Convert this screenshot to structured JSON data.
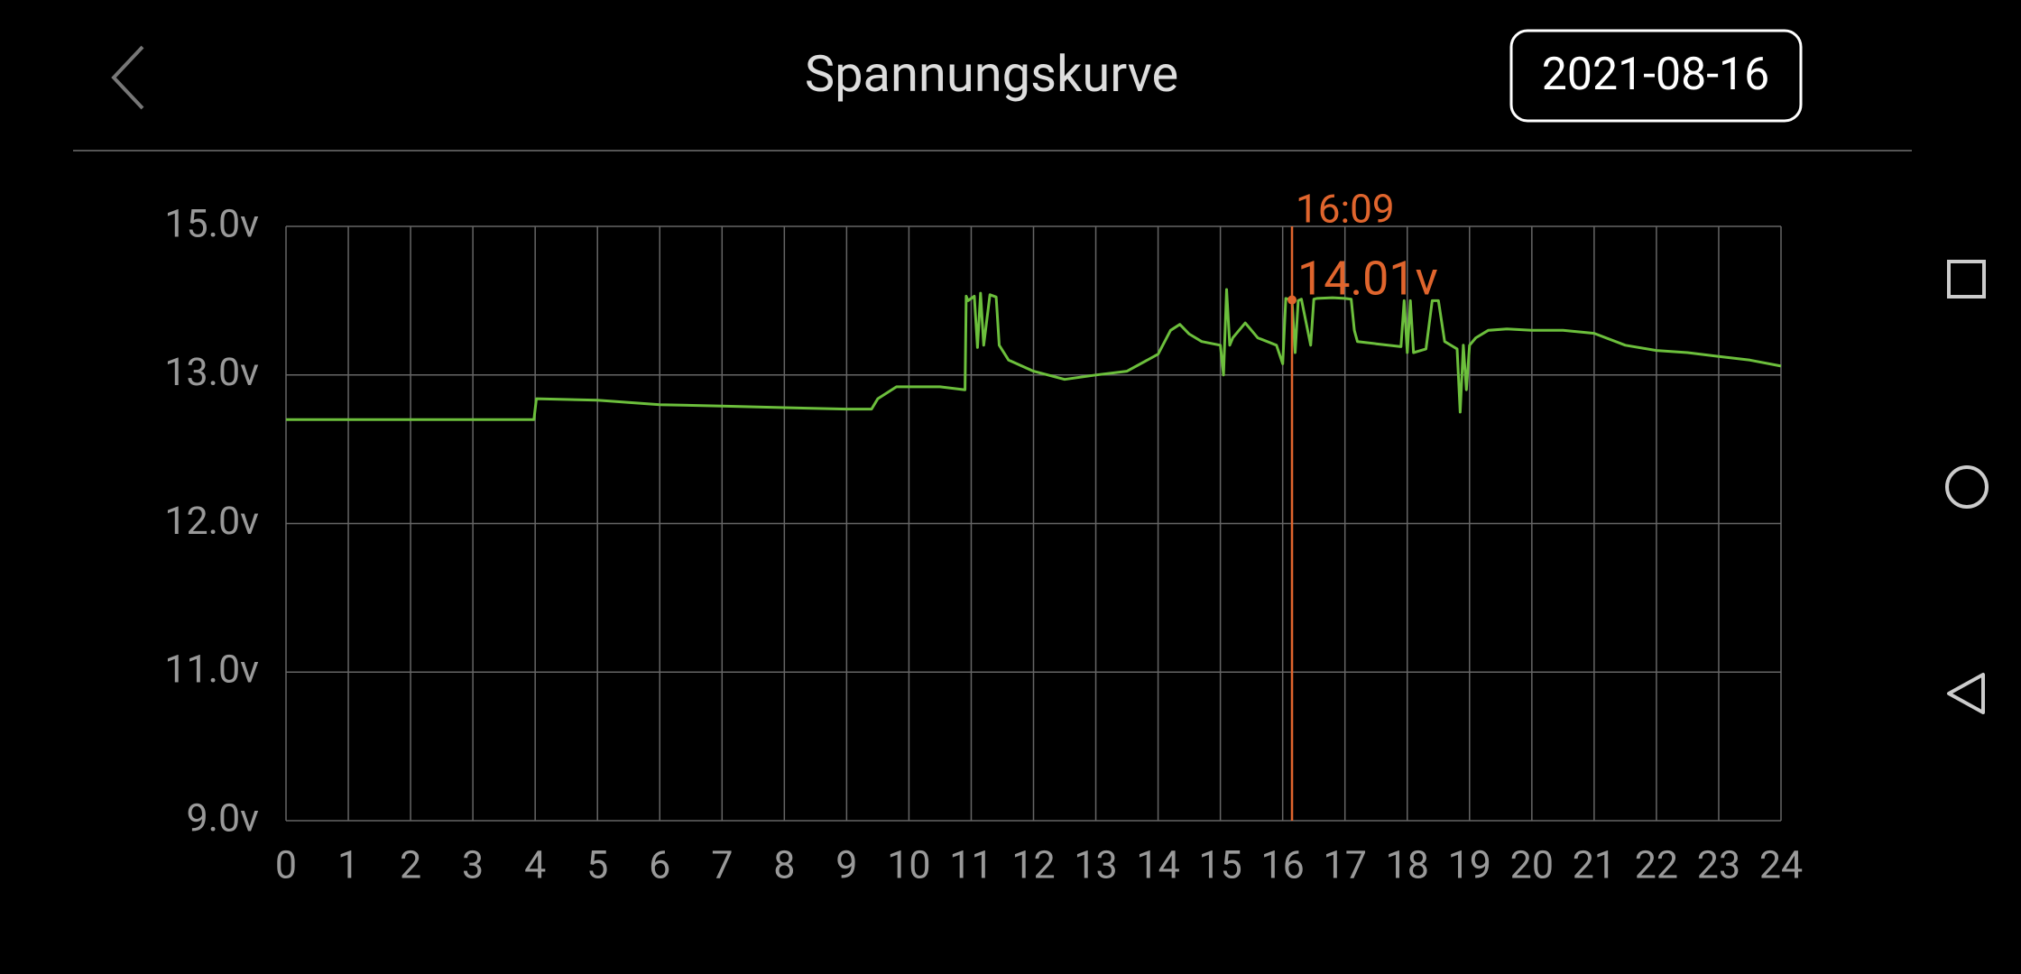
{
  "header": {
    "title": "Spannungskurve",
    "date": "2021-08-16"
  },
  "chart_data": {
    "type": "line",
    "color": "#6cbf3c",
    "grid": true,
    "x": [
      0,
      1,
      2,
      3,
      3.98,
      4.02,
      5,
      6,
      7,
      8,
      9,
      9.4,
      9.5,
      9.8,
      10.5,
      10.9,
      10.92,
      10.95,
      11.05,
      11.1,
      11.15,
      11.2,
      11.3,
      11.4,
      11.45,
      11.6,
      12,
      12.5,
      13,
      13.5,
      14,
      14.2,
      14.35,
      14.5,
      14.7,
      15,
      15.05,
      15.1,
      15.15,
      15.2,
      15.4,
      15.6,
      15.9,
      16,
      16.05,
      16.15,
      16.2,
      16.25,
      16.3,
      16.45,
      16.5,
      16.55,
      16.8,
      17,
      17.1,
      17.15,
      17.2,
      17.5,
      17.9,
      17.95,
      18,
      18.05,
      18.1,
      18.3,
      18.4,
      18.5,
      18.6,
      18.8,
      18.85,
      18.9,
      18.95,
      19,
      19.1,
      19.3,
      19.6,
      20,
      20.5,
      21,
      21.5,
      22,
      22.5,
      23,
      23.5,
      24
    ],
    "values": [
      12.7,
      12.7,
      12.7,
      12.7,
      12.7,
      12.84,
      12.83,
      12.8,
      12.79,
      12.78,
      12.77,
      12.77,
      12.84,
      12.92,
      12.92,
      12.9,
      14.06,
      14.0,
      14.06,
      13.37,
      14.1,
      13.4,
      14.08,
      14.05,
      13.4,
      13.2,
      13.05,
      12.97,
      13.0,
      13.05,
      13.28,
      13.6,
      13.68,
      13.55,
      13.45,
      13.4,
      13.0,
      14.15,
      13.4,
      13.5,
      13.7,
      13.5,
      13.4,
      13.15,
      14.03,
      14.01,
      13.3,
      14.0,
      14.02,
      13.4,
      14.02,
      14.03,
      14.04,
      14.03,
      14.02,
      13.6,
      13.45,
      13.42,
      13.38,
      14.0,
      13.3,
      14.0,
      13.3,
      13.35,
      14.0,
      14.0,
      13.45,
      13.35,
      12.75,
      13.4,
      12.9,
      13.4,
      13.5,
      13.6,
      13.62,
      13.6,
      13.6,
      13.56,
      13.4,
      13.33,
      13.3,
      13.25,
      13.2,
      13.12
    ],
    "xlim": [
      0,
      24
    ],
    "xticks": [
      0,
      1,
      2,
      3,
      4,
      5,
      6,
      7,
      8,
      9,
      10,
      11,
      12,
      13,
      14,
      15,
      16,
      17,
      18,
      19,
      20,
      21,
      22,
      23,
      24
    ],
    "ylim": [
      9,
      15
    ],
    "yticks": [
      {
        "value": 9,
        "label": "9.0v"
      },
      {
        "value": 11,
        "label": "11.0v"
      },
      {
        "value": 12,
        "label": "12.0v"
      },
      {
        "value": 13,
        "label": "13.0v"
      },
      {
        "value": 15,
        "label": "15.0v"
      }
    ],
    "cursor": {
      "x": 16.15,
      "time_label": "16:09",
      "value": 14.01,
      "value_label": "14.01v",
      "color": "#e0652d"
    }
  }
}
